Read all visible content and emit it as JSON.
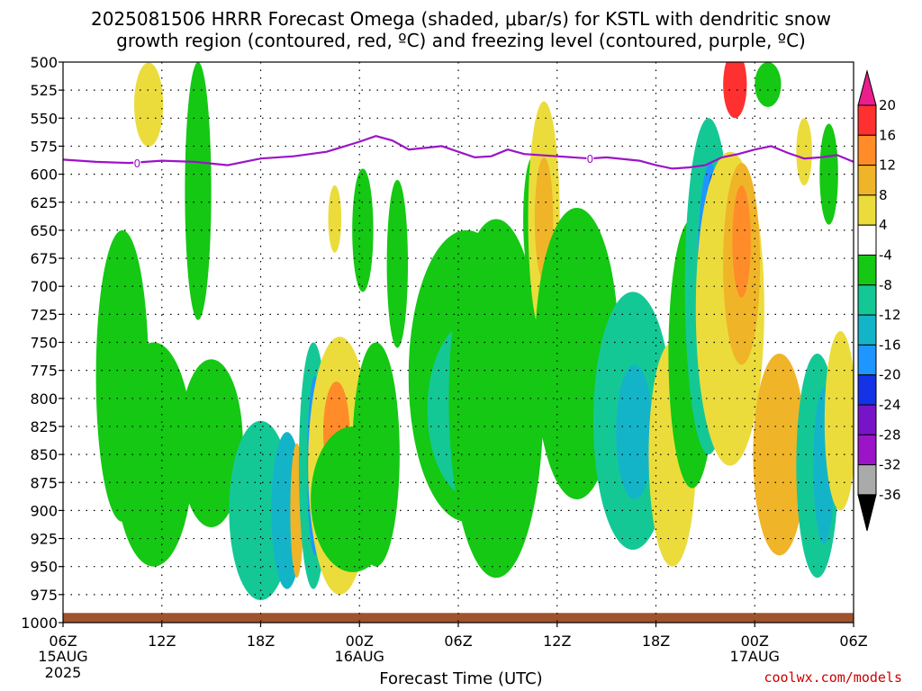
{
  "chart_data": {
    "type": "heatmap",
    "title_line1": "2025081506 HRRR Forecast Omega (shaded, μbar/s) for KSTL with dendritic snow",
    "title_line2": "growth region (contoured, red, ºC) and freezing level (contoured, purple, ºC)",
    "xlabel": "Forecast Time (UTC)",
    "y_ticks": [
      500,
      525,
      550,
      575,
      600,
      625,
      650,
      675,
      700,
      725,
      750,
      775,
      800,
      825,
      850,
      875,
      900,
      925,
      950,
      975,
      1000
    ],
    "ylim": [
      500,
      1000
    ],
    "x_ticks": [
      {
        "label": "06Z",
        "sub": "15AUG",
        "sub2": "2025",
        "hour": 0
      },
      {
        "label": "12Z",
        "sub": "",
        "sub2": "",
        "hour": 6
      },
      {
        "label": "18Z",
        "sub": "",
        "sub2": "",
        "hour": 12
      },
      {
        "label": "00Z",
        "sub": "16AUG",
        "sub2": "",
        "hour": 18
      },
      {
        "label": "06Z",
        "sub": "",
        "sub2": "",
        "hour": 24
      },
      {
        "label": "12Z",
        "sub": "",
        "sub2": "",
        "hour": 30
      },
      {
        "label": "18Z",
        "sub": "",
        "sub2": "",
        "hour": 36
      },
      {
        "label": "00Z",
        "sub": "17AUG",
        "sub2": "",
        "hour": 42
      },
      {
        "label": "06Z",
        "sub": "",
        "sub2": "",
        "hour": 48
      }
    ],
    "xlim": [
      0,
      48
    ],
    "grid": true,
    "colorbar": {
      "labels": [
        "20",
        "16",
        "12",
        "8",
        "4",
        "-4",
        "-8",
        "-12",
        "-16",
        "-20",
        "-24",
        "-28",
        "-32",
        "-36"
      ],
      "colors": [
        "#ea1e8c",
        "#ff3030",
        "#ff8c28",
        "#f0b428",
        "#ebdc3c",
        "#ffffff",
        "#14c814",
        "#14c896",
        "#14b4c8",
        "#1e96ff",
        "#1432e6",
        "#7814c8",
        "#9b14c8",
        "#aaaaaa",
        "#000000"
      ]
    },
    "freezing_level": {
      "label": "0",
      "points": [
        [
          0,
          587
        ],
        [
          2,
          589
        ],
        [
          4,
          590
        ],
        [
          6,
          588
        ],
        [
          8,
          589
        ],
        [
          10,
          592
        ],
        [
          12,
          586
        ],
        [
          14,
          584
        ],
        [
          16,
          580
        ],
        [
          18,
          571
        ],
        [
          19,
          566
        ],
        [
          20,
          570
        ],
        [
          21,
          578
        ],
        [
          23,
          575
        ],
        [
          25,
          585
        ],
        [
          26,
          584
        ],
        [
          27,
          578
        ],
        [
          28,
          582
        ],
        [
          30,
          584
        ],
        [
          32,
          586
        ],
        [
          33,
          585
        ],
        [
          35,
          588
        ],
        [
          36,
          592
        ],
        [
          37,
          595
        ],
        [
          38,
          594
        ],
        [
          39,
          592
        ],
        [
          40,
          585
        ],
        [
          41,
          582
        ],
        [
          42,
          578
        ],
        [
          43,
          575
        ],
        [
          44,
          581
        ],
        [
          45,
          586
        ],
        [
          46,
          585
        ],
        [
          47,
          583
        ],
        [
          48,
          589
        ]
      ],
      "label_hours": [
        4.5,
        32
      ]
    },
    "omega_cells": [
      {
        "h": 5.2,
        "p": 538,
        "w": 0.55,
        "d": 75,
        "v": 6
      },
      {
        "h": 8.2,
        "p": 615,
        "w": 0.5,
        "d": 230,
        "v": -6
      },
      {
        "h": 3.6,
        "p": 780,
        "w": 1.0,
        "d": 260,
        "v": -6
      },
      {
        "h": 5.5,
        "p": 850,
        "w": 1.5,
        "d": 200,
        "v": -7
      },
      {
        "h": 9.0,
        "p": 840,
        "w": 1.2,
        "d": 150,
        "v": -6
      },
      {
        "h": 12.0,
        "p": 900,
        "w": 1.2,
        "d": 160,
        "v": -8
      },
      {
        "h": 13.6,
        "p": 900,
        "w": 0.6,
        "d": 140,
        "v": -13
      },
      {
        "h": 14.2,
        "p": 900,
        "w": 0.25,
        "d": 120,
        "v": 10
      },
      {
        "h": 15.2,
        "p": 860,
        "w": 0.55,
        "d": 220,
        "v": -9
      },
      {
        "h": 15.3,
        "p": 860,
        "w": 0.3,
        "d": 160,
        "v": -17
      },
      {
        "h": 15.3,
        "p": 860,
        "w": 0.15,
        "d": 100,
        "v": -25
      },
      {
        "h": 16.8,
        "p": 860,
        "w": 1.2,
        "d": 230,
        "v": 6
      },
      {
        "h": 16.6,
        "p": 830,
        "w": 0.5,
        "d": 90,
        "v": 14
      },
      {
        "h": 17.6,
        "p": 890,
        "w": 1.6,
        "d": 130,
        "v": -6
      },
      {
        "h": 19.0,
        "p": 850,
        "w": 0.9,
        "d": 200,
        "v": -6
      },
      {
        "h": 18.2,
        "p": 650,
        "w": 0.4,
        "d": 110,
        "v": -6
      },
      {
        "h": 16.5,
        "p": 640,
        "w": 0.25,
        "d": 60,
        "v": 5
      },
      {
        "h": 20.3,
        "p": 680,
        "w": 0.4,
        "d": 150,
        "v": -6
      },
      {
        "h": 24.5,
        "p": 780,
        "w": 2.2,
        "d": 260,
        "v": -7
      },
      {
        "h": 25.0,
        "p": 810,
        "w": 1.8,
        "d": 160,
        "v": -10
      },
      {
        "h": 26.3,
        "p": 800,
        "w": 1.8,
        "d": 320,
        "v": -6
      },
      {
        "h": 28.5,
        "p": 640,
        "w": 0.35,
        "d": 110,
        "v": -6
      },
      {
        "h": 29.2,
        "p": 640,
        "w": 0.6,
        "d": 210,
        "v": 6
      },
      {
        "h": 29.2,
        "p": 640,
        "w": 0.35,
        "d": 110,
        "v": 11
      },
      {
        "h": 31.2,
        "p": 760,
        "w": 1.6,
        "d": 260,
        "v": -7
      },
      {
        "h": 34.6,
        "p": 820,
        "w": 1.5,
        "d": 230,
        "v": -9
      },
      {
        "h": 34.7,
        "p": 830,
        "w": 0.7,
        "d": 120,
        "v": -12
      },
      {
        "h": 37.0,
        "p": 850,
        "w": 0.9,
        "d": 200,
        "v": 5
      },
      {
        "h": 38.2,
        "p": 760,
        "w": 0.9,
        "d": 240,
        "v": -7
      },
      {
        "h": 39.2,
        "p": 700,
        "w": 0.9,
        "d": 300,
        "v": -10
      },
      {
        "h": 39.3,
        "p": 700,
        "w": 0.5,
        "d": 220,
        "v": -16
      },
      {
        "h": 39.4,
        "p": 700,
        "w": 0.25,
        "d": 200,
        "v": -22
      },
      {
        "h": 40.5,
        "p": 720,
        "w": 1.3,
        "d": 280,
        "v": 6
      },
      {
        "h": 41.2,
        "p": 680,
        "w": 0.7,
        "d": 180,
        "v": 9
      },
      {
        "h": 41.2,
        "p": 660,
        "w": 0.35,
        "d": 100,
        "v": 14
      },
      {
        "h": 40.8,
        "p": 520,
        "w": 0.45,
        "d": 60,
        "v": 18
      },
      {
        "h": 43.5,
        "p": 850,
        "w": 1.0,
        "d": 180,
        "v": 8
      },
      {
        "h": 42.8,
        "p": 520,
        "w": 0.5,
        "d": 40,
        "v": -6
      },
      {
        "h": 45.0,
        "p": 580,
        "w": 0.3,
        "d": 60,
        "v": 6
      },
      {
        "h": 45.8,
        "p": 860,
        "w": 0.8,
        "d": 200,
        "v": -8
      },
      {
        "h": 46.2,
        "p": 860,
        "w": 0.4,
        "d": 140,
        "v": -14
      },
      {
        "h": 46.5,
        "p": 600,
        "w": 0.35,
        "d": 90,
        "v": -6
      },
      {
        "h": 47.2,
        "p": 820,
        "w": 0.6,
        "d": 160,
        "v": 6
      }
    ],
    "surface_band": {
      "p": 993
    }
  },
  "credit": "coolwx.com/models"
}
